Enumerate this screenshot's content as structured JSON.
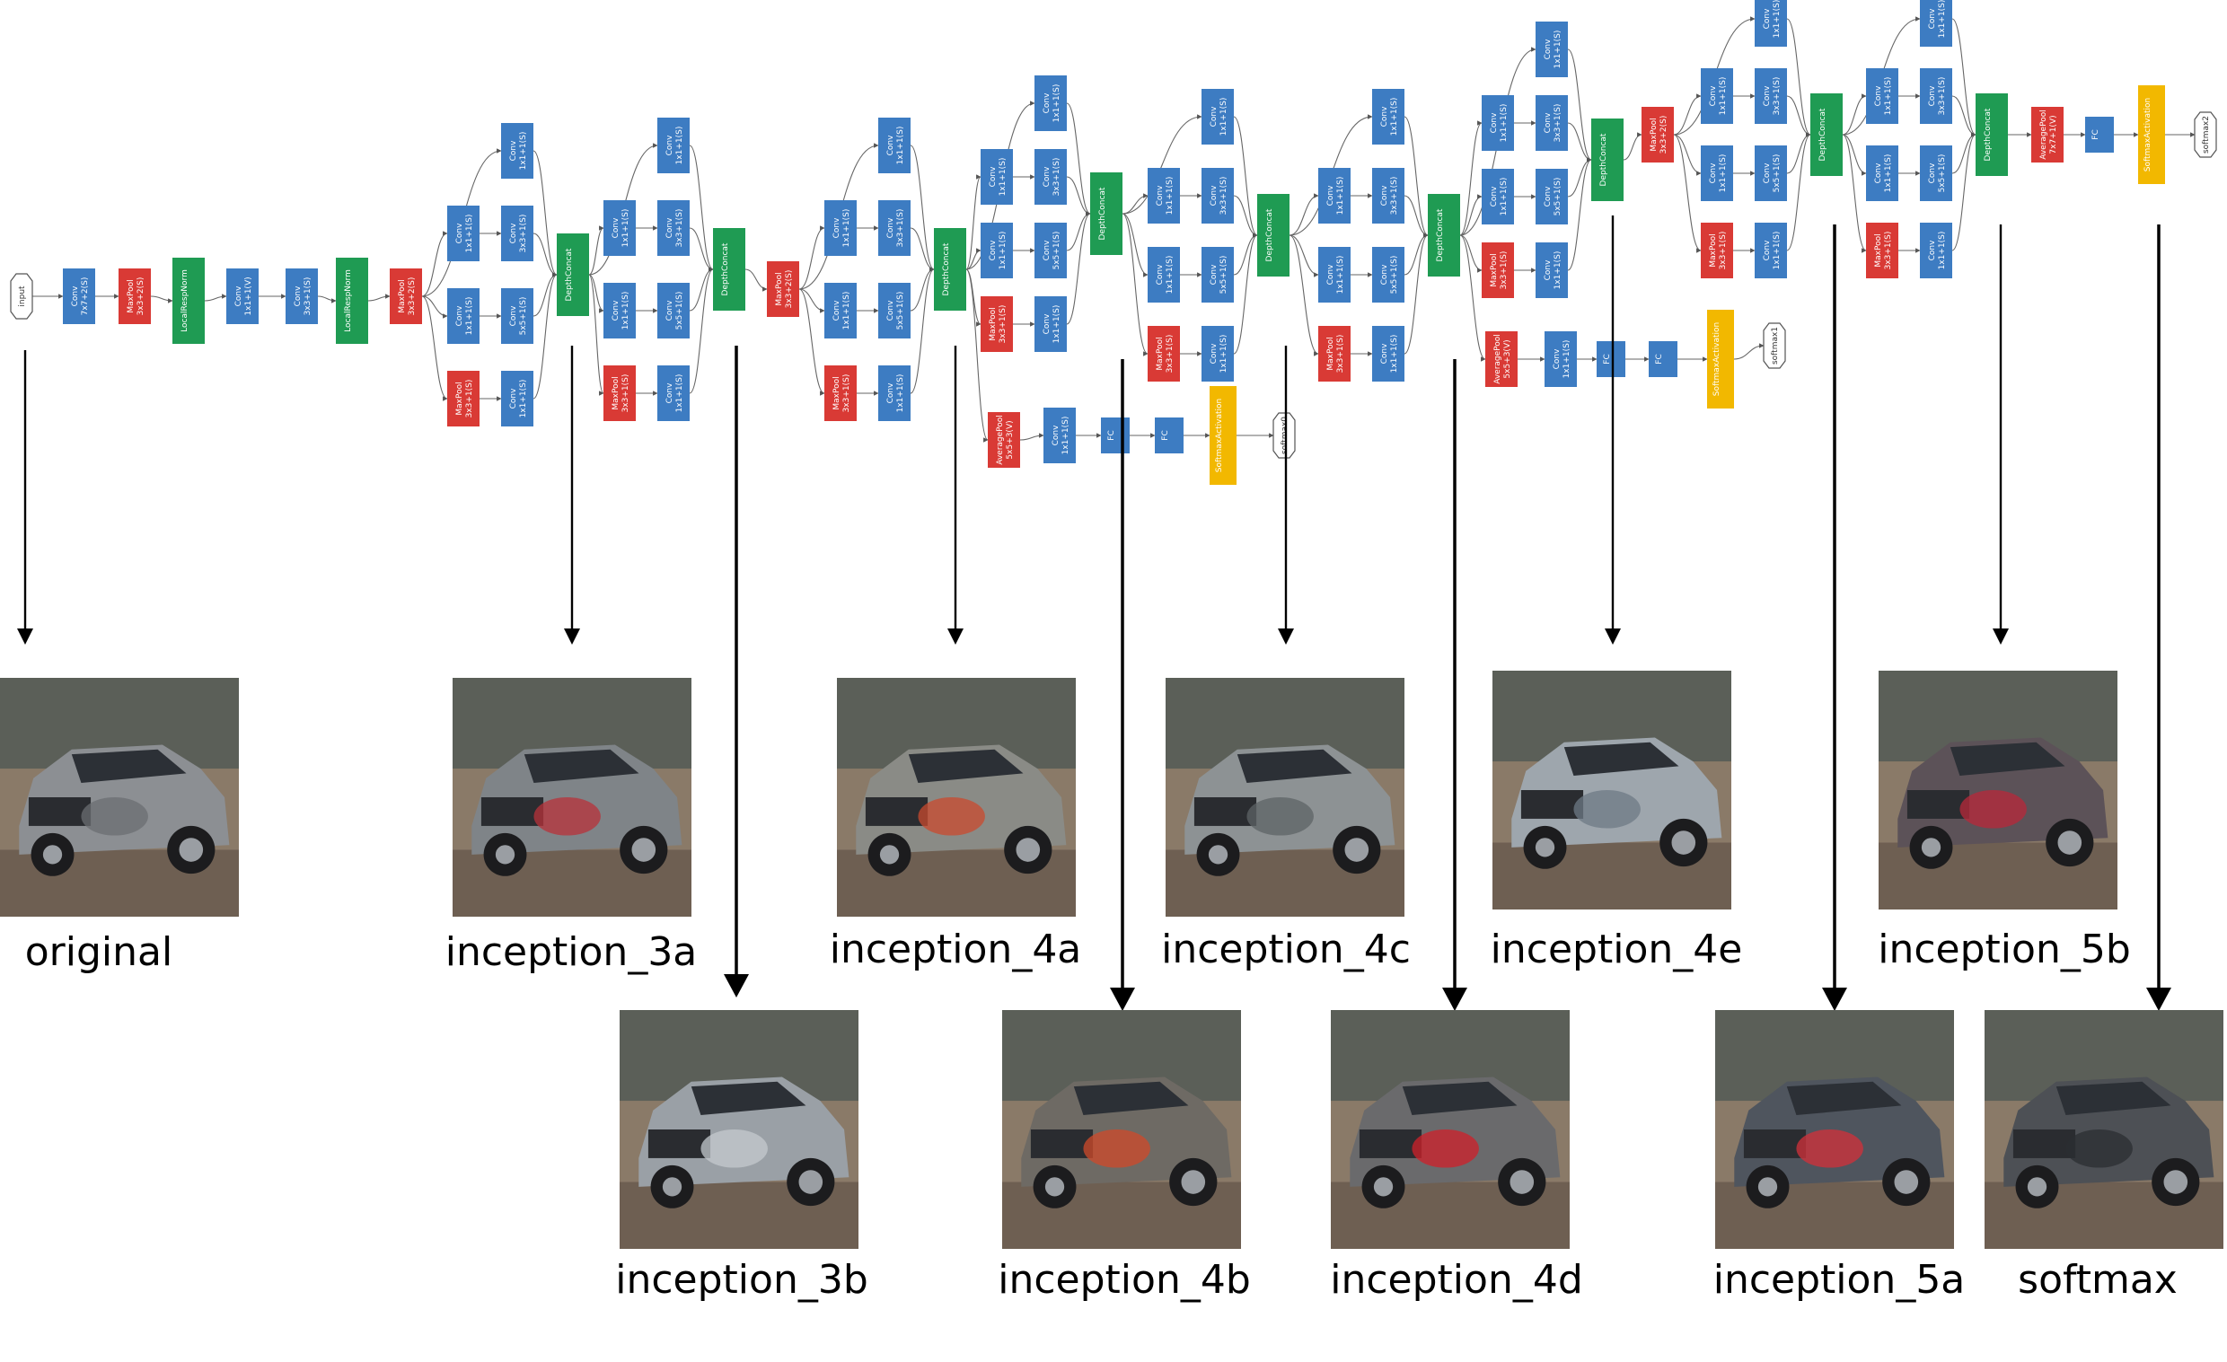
{
  "colors": {
    "conv": "#3d7cc2",
    "pool": "#d93a35",
    "concat": "#1f9b53",
    "fc": "#3d7cc2",
    "softmax": "#f2b800",
    "io_fill": "#ffffff",
    "io_stroke": "#555555",
    "edge": "#666666"
  },
  "network": {
    "input_label": "input",
    "labels": {
      "conv": "Conv",
      "maxpool": "MaxPool",
      "avgpool": "AveragePool",
      "concat": "DepthConcat",
      "lrn": "LocalRespNorm",
      "fc": "FC",
      "softmax_act": "SoftmaxActivation"
    },
    "stem": [
      {
        "type": "conv",
        "label": "Conv",
        "sub": "7x7+2(S)"
      },
      {
        "type": "pool",
        "label": "MaxPool",
        "sub": "3x3+2(S)"
      },
      {
        "type": "concat",
        "label": "LocalRespNorm",
        "sub": ""
      },
      {
        "type": "conv",
        "label": "Conv",
        "sub": "1x1+1(V)"
      },
      {
        "type": "conv",
        "label": "Conv",
        "sub": "3x3+1(S)"
      },
      {
        "type": "concat",
        "label": "LocalRespNorm",
        "sub": ""
      },
      {
        "type": "pool",
        "label": "MaxPool",
        "sub": "3x3+2(S)"
      }
    ],
    "branch_subs": {
      "b1": "1x1+1(S)",
      "b2a": "1x1+1(S)",
      "b2b": "3x3+1(S)",
      "b3a": "1x1+1(S)",
      "b3b": "5x5+1(S)",
      "b4a": "3x3+1(S)",
      "b4b": "1x1+1(S)"
    },
    "mid_pools": [
      "MaxPool 3x3+2(S)",
      "MaxPool 3x3+2(S)"
    ],
    "aux": [
      {
        "pool": "AveragePool",
        "pool_sub": "5x5+3(V)",
        "conv_sub": "1x1+1(S)",
        "fc1": "FC",
        "fc2": "FC",
        "act": "SoftmaxActivation",
        "out": "softmax0"
      },
      {
        "pool": "AveragePool",
        "pool_sub": "5x5+3(V)",
        "conv_sub": "1x1+1(S)",
        "fc1": "FC",
        "fc2": "FC",
        "act": "SoftmaxActivation",
        "out": "softmax1"
      }
    ],
    "final": {
      "pool": "AveragePool",
      "pool_sub": "7x7+1(V)",
      "fc": "FC",
      "act": "SoftmaxActivation",
      "out": "softmax2"
    }
  },
  "captions": {
    "original": "original",
    "i3a": "inception_3a",
    "i3b": "inception_3b",
    "i4a": "inception_4a",
    "i4b": "inception_4b",
    "i4c": "inception_4c",
    "i4d": "inception_4d",
    "i4e": "inception_4e",
    "i5a": "inception_5a",
    "i5b": "inception_5b",
    "softmax": "softmax"
  },
  "images": [
    {
      "key": "original",
      "tint": "#8c8f93",
      "accent": "#6b6e72"
    },
    {
      "key": "i3a",
      "tint": "#7f8488",
      "accent": "#b8323a"
    },
    {
      "key": "i3b",
      "tint": "#9aa0a6",
      "accent": "#c4c9ce"
    },
    {
      "key": "i4a",
      "tint": "#8a8b86",
      "accent": "#c94a2e"
    },
    {
      "key": "i4b",
      "tint": "#6e6a64",
      "accent": "#d04a2a"
    },
    {
      "key": "i4c",
      "tint": "#8d9294",
      "accent": "#5e6366"
    },
    {
      "key": "i4d",
      "tint": "#6a6a6c",
      "accent": "#d0202a"
    },
    {
      "key": "i4e",
      "tint": "#9ea6ad",
      "accent": "#6d7a86"
    },
    {
      "key": "i5a",
      "tint": "#4f555e",
      "accent": "#d3303a"
    },
    {
      "key": "i5b",
      "tint": "#5c5258",
      "accent": "#b8283a"
    },
    {
      "key": "softmax",
      "tint": "#4d5055",
      "accent": "#2b2d31"
    }
  ]
}
